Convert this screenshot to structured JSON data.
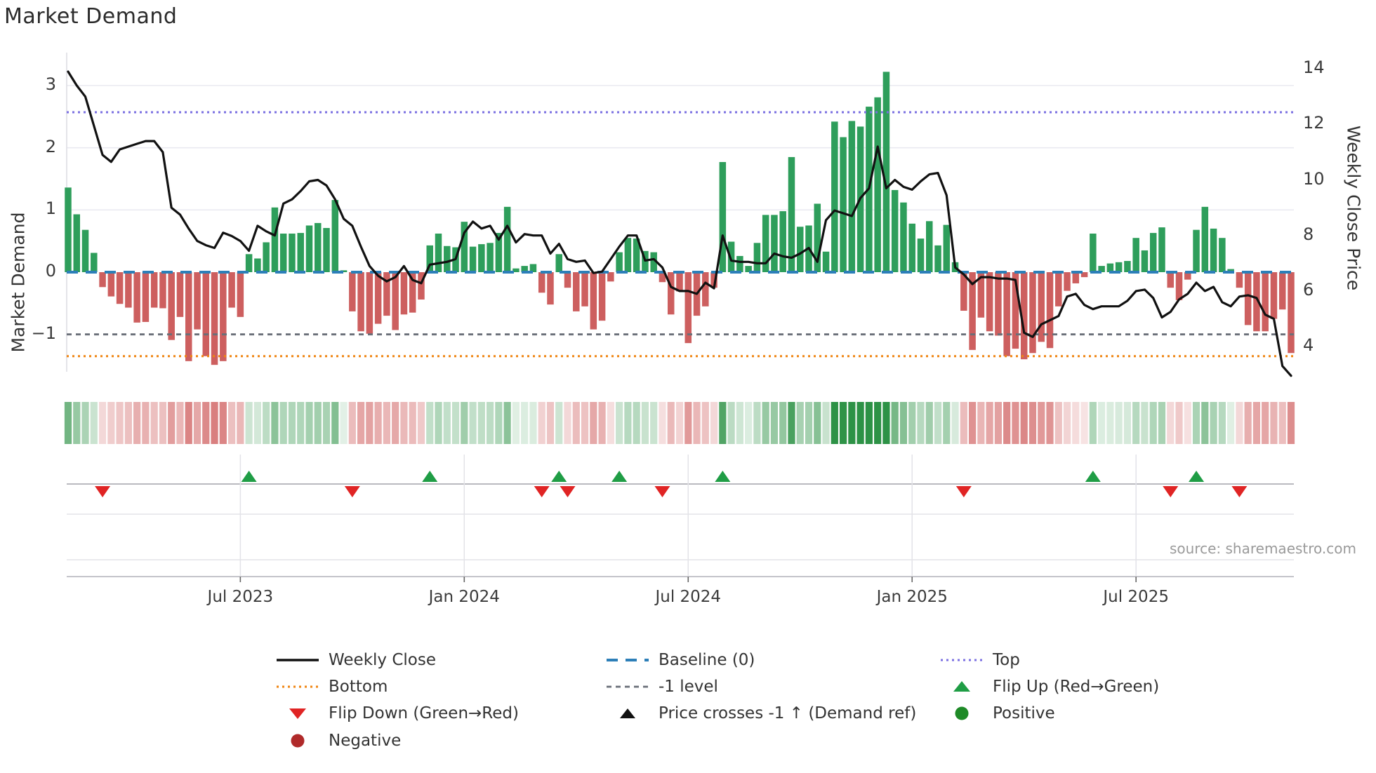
{
  "title": "Market Demand",
  "y_axis_left": {
    "label": "Market Demand",
    "tick_labels": [
      "3",
      "2",
      "1",
      "0",
      "−1"
    ],
    "tick_values": [
      3,
      2,
      1,
      0,
      -1
    ]
  },
  "y_axis_right": {
    "label": "Weekly Close Price",
    "tick_labels": [
      "14",
      "12",
      "10",
      "8",
      "6",
      "4"
    ],
    "tick_values": [
      14,
      12,
      10,
      8,
      6,
      4
    ]
  },
  "x_axis": {
    "tick_labels": [
      "Jul 2023",
      "Jan 2024",
      "Jul 2024",
      "Jan 2025",
      "Jul 2025"
    ],
    "tick_indices": [
      20,
      46,
      72,
      98,
      124
    ]
  },
  "source": "source: sharemaestro.com",
  "colors": {
    "bar_positive": "#2e9e5b",
    "bar_negative": "#cd5f5f",
    "price_line": "#111111",
    "baseline": "#2d7fb8",
    "top_line": "#7b70e2",
    "bottom_line": "#ef8512",
    "minus_one_line": "#6a6f78",
    "flip_up": "#1f9d45",
    "flip_down": "#e02424",
    "price_cross": "#111111",
    "positive_dot": "#1e8a27",
    "negative_dot": "#b02a2a",
    "grid": "#e9e9f0",
    "axis_line": "#c4c4ca"
  },
  "legend": [
    {
      "label": "Weekly Close",
      "swatch": "line-black"
    },
    {
      "label": "Baseline (0)",
      "swatch": "dash-blue"
    },
    {
      "label": "Top",
      "swatch": "dot-purple"
    },
    {
      "label": "Bottom",
      "swatch": "dot-orange"
    },
    {
      "label": "-1 level",
      "swatch": "dash-gray"
    },
    {
      "label": "Flip Up (Red→Green)",
      "swatch": "tri-up-green"
    },
    {
      "label": "Flip Down (Green→Red)",
      "swatch": "tri-down-red"
    },
    {
      "label": "Price crosses -1 ↑ (Demand ref)",
      "swatch": "tri-up-black"
    },
    {
      "label": "Positive",
      "swatch": "circle-green"
    },
    {
      "label": "Negative",
      "swatch": "circle-darkred"
    }
  ],
  "chart_data": {
    "type": "bar",
    "subtype": "weekly demand bars + price line + heatmap strip + flip markers",
    "title": "Market Demand",
    "xlabel": "",
    "ylabel_left": "Market Demand",
    "ylabel_right": "Weekly Close Price",
    "ylim_left": [
      -1.72,
      3.55
    ],
    "ylim_right": [
      2.8,
      14.6
    ],
    "grid": true,
    "legend_position": "bottom",
    "n_weeks": 143,
    "x_tick_indices": [
      20,
      46,
      72,
      98,
      124
    ],
    "x_tick_labels": [
      "Jul 2023",
      "Jan 2024",
      "Jul 2024",
      "Jan 2025",
      "Jul 2025"
    ],
    "reference_lines": {
      "baseline": 0,
      "top": 2.57,
      "bottom": -1.35,
      "minus_one_level": -1
    },
    "series": [
      {
        "name": "Market Demand (bars)",
        "values": [
          1.36,
          0.93,
          0.68,
          0.31,
          -0.24,
          -0.39,
          -0.51,
          -0.57,
          -0.81,
          -0.8,
          -0.57,
          -0.58,
          -1.09,
          -0.72,
          -1.43,
          -0.92,
          -1.35,
          -1.49,
          -1.43,
          -0.57,
          -0.72,
          0.29,
          0.22,
          0.48,
          1.04,
          0.62,
          0.62,
          0.63,
          0.75,
          0.79,
          0.71,
          1.16,
          0.03,
          -0.63,
          -0.95,
          -0.99,
          -0.83,
          -0.7,
          -0.93,
          -0.68,
          -0.65,
          -0.44,
          0.43,
          0.62,
          0.42,
          0.4,
          0.81,
          0.41,
          0.45,
          0.47,
          0.63,
          1.05,
          0.06,
          0.1,
          0.13,
          -0.33,
          -0.52,
          0.29,
          -0.25,
          -0.63,
          -0.55,
          -0.92,
          -0.78,
          -0.15,
          0.32,
          0.55,
          0.54,
          0.34,
          0.32,
          -0.16,
          -0.68,
          -0.31,
          -1.14,
          -0.7,
          -0.55,
          -0.25,
          1.77,
          0.49,
          0.26,
          0.1,
          0.47,
          0.92,
          0.92,
          0.98,
          1.85,
          0.73,
          0.75,
          1.1,
          0.33,
          2.42,
          2.17,
          2.43,
          2.34,
          2.66,
          2.81,
          3.22,
          1.32,
          1.12,
          0.78,
          0.54,
          0.82,
          0.43,
          0.76,
          0.16,
          -0.62,
          -1.25,
          -0.73,
          -0.95,
          -1.02,
          -1.35,
          -1.23,
          -1.4,
          -1.3,
          -1.12,
          -1.22,
          -0.55,
          -0.3,
          -0.18,
          -0.08,
          0.62,
          0.1,
          0.14,
          0.16,
          0.18,
          0.55,
          0.35,
          0.63,
          0.72,
          -0.25,
          -0.45,
          -0.12,
          0.68,
          1.05,
          0.7,
          0.55,
          0.05,
          -0.25,
          -0.85,
          -0.95,
          -0.95,
          -0.75,
          -0.6,
          -1.3
        ]
      },
      {
        "name": "Weekly Close (line, right axis)",
        "values": [
          13.9,
          13.4,
          13.0,
          11.95,
          10.9,
          10.65,
          11.1,
          11.2,
          11.3,
          11.4,
          11.4,
          11.0,
          9.0,
          8.75,
          8.25,
          7.8,
          7.65,
          7.55,
          8.1,
          7.98,
          7.8,
          7.45,
          8.35,
          8.15,
          8.0,
          9.15,
          9.3,
          9.6,
          9.95,
          10.0,
          9.8,
          9.3,
          8.6,
          8.35,
          7.6,
          6.9,
          6.55,
          6.35,
          6.5,
          6.9,
          6.4,
          6.28,
          6.95,
          7.0,
          7.05,
          7.15,
          8.1,
          8.5,
          8.25,
          8.35,
          7.85,
          8.35,
          7.75,
          8.05,
          8.0,
          8.0,
          7.35,
          7.7,
          7.15,
          7.05,
          7.1,
          6.65,
          6.7,
          7.15,
          7.6,
          8.0,
          8.0,
          7.1,
          7.15,
          6.85,
          6.15,
          6.0,
          6.0,
          5.9,
          6.3,
          6.1,
          8.0,
          7.1,
          7.05,
          7.05,
          7.0,
          7.0,
          7.35,
          7.25,
          7.2,
          7.35,
          7.55,
          7.05,
          8.55,
          8.9,
          8.8,
          8.7,
          9.35,
          9.7,
          11.2,
          9.7,
          10.0,
          9.75,
          9.65,
          9.95,
          10.2,
          10.25,
          9.45,
          6.85,
          6.6,
          6.25,
          6.5,
          6.5,
          6.45,
          6.45,
          6.4,
          4.5,
          4.35,
          4.8,
          4.95,
          5.1,
          5.8,
          5.9,
          5.5,
          5.35,
          5.45,
          5.45,
          5.45,
          5.65,
          6.0,
          6.05,
          5.75,
          5.05,
          5.25,
          5.7,
          5.9,
          6.3,
          6.0,
          6.15,
          5.6,
          5.45,
          5.8,
          5.85,
          5.75,
          5.15,
          5.0,
          3.3,
          2.95
        ]
      }
    ],
    "flip_up_indices": [
      21,
      42,
      57,
      64,
      76,
      119,
      131
    ],
    "flip_down_indices": [
      4,
      33,
      55,
      58,
      69,
      104,
      128,
      136
    ],
    "price_cross_indices": [],
    "heatmap_strip": "color intensity mirrors demand bar sign/magnitude per week"
  }
}
